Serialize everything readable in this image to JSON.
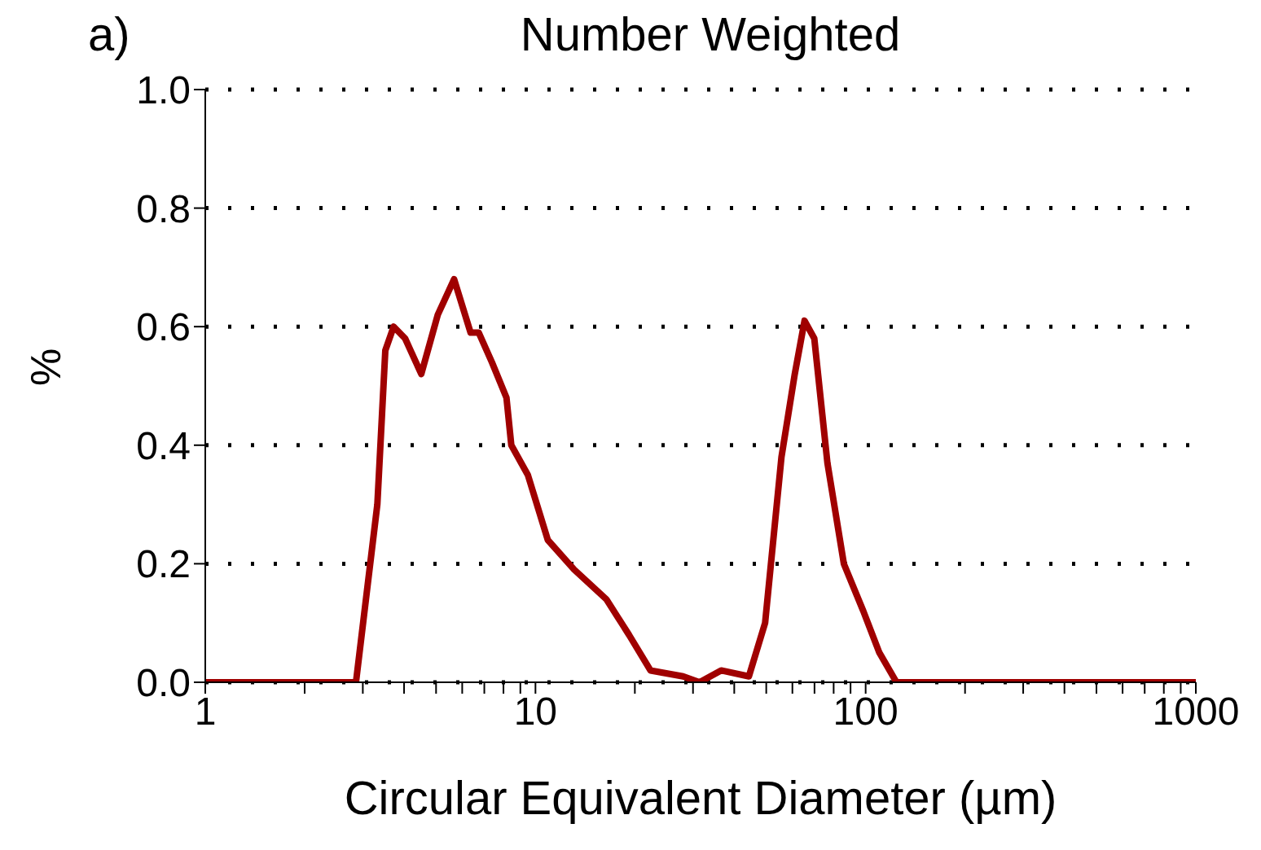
{
  "chart_data": {
    "type": "line",
    "title": "Number Weighted",
    "xlabel": "Circular Equivalent Diameter (µm)",
    "ylabel": "%",
    "annotations": [
      "a)"
    ],
    "log": "x",
    "grid": "y",
    "marker": "none",
    "line_style": "solid",
    "xlim": [
      1,
      1000
    ],
    "xticks": [
      1,
      {
        "value": 2,
        "label": null
      },
      {
        "value": 3,
        "label": null
      },
      {
        "value": 4,
        "label": null
      },
      {
        "value": 5,
        "label": null
      },
      {
        "value": 6,
        "label": null
      },
      {
        "value": 7,
        "label": null
      },
      {
        "value": 8,
        "label": null
      },
      {
        "value": 9,
        "label": null
      },
      10,
      {
        "value": 20,
        "label": null
      },
      {
        "value": 30,
        "label": null
      },
      {
        "value": 40,
        "label": null
      },
      {
        "value": 50,
        "label": null
      },
      {
        "value": 60,
        "label": null
      },
      {
        "value": 70,
        "label": null
      },
      {
        "value": 80,
        "label": null
      },
      {
        "value": 90,
        "label": null
      },
      100,
      {
        "value": 200,
        "label": null
      },
      {
        "value": 300,
        "label": null
      },
      {
        "value": 400,
        "label": null
      },
      {
        "value": 500,
        "label": null
      },
      {
        "value": 600,
        "label": null
      },
      {
        "value": 700,
        "label": null
      },
      {
        "value": 800,
        "label": null
      },
      {
        "value": 900,
        "label": null
      },
      1000
    ],
    "ylim": [
      0,
      1
    ],
    "yticks": [
      {
        "value": 0,
        "label": "0.0"
      },
      {
        "value": 0.2,
        "label": "0.2"
      },
      {
        "value": 0.4,
        "label": "0.4"
      },
      {
        "value": 0.6,
        "label": "0.6"
      },
      {
        "value": 0.8,
        "label": "0.8"
      },
      {
        "value": 1,
        "label": "1.0"
      }
    ],
    "series": [
      {
        "color": "#a00000",
        "x": [
          1,
          2.86,
          3.32,
          3.51,
          3.72,
          4.03,
          4.51,
          5.06,
          5.67,
          6.36,
          6.73,
          7.38,
          8.17,
          8.45,
          9.48,
          10.9,
          13.1,
          16.4,
          19.2,
          22.3,
          28,
          31.4,
          36.5,
          44.3,
          49.6,
          55.6,
          61,
          65.3,
          69.9,
          76.6,
          85.9,
          98.4,
          110,
          124,
          1000
        ],
        "values": [
          0,
          0,
          0.3,
          0.56,
          0.6,
          0.58,
          0.52,
          0.62,
          0.68,
          0.59,
          0.59,
          0.54,
          0.48,
          0.4,
          0.35,
          0.24,
          0.19,
          0.14,
          0.08,
          0.02,
          0.01,
          0,
          0.02,
          0.01,
          0.1,
          0.38,
          0.52,
          0.61,
          0.58,
          0.37,
          0.2,
          0.12,
          0.05,
          0,
          0
        ]
      }
    ]
  }
}
